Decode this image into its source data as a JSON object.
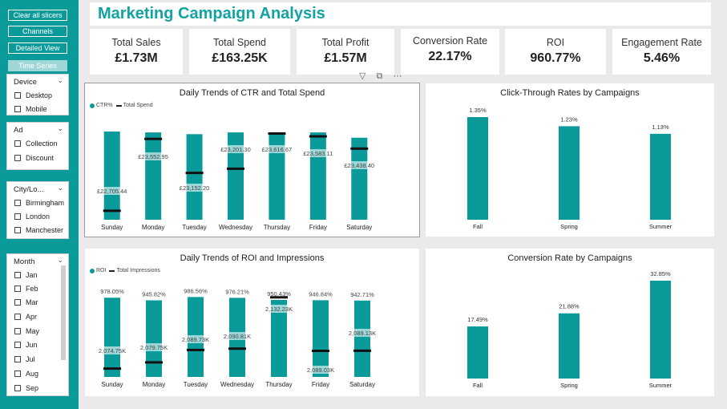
{
  "sidebar": {
    "buttons": [
      "Clear all slicers",
      "Channels",
      "Detailed View",
      "Time Series"
    ],
    "slicers": [
      {
        "title": "Device",
        "options": [
          "Desktop",
          "Mobile"
        ]
      },
      {
        "title": "Ad",
        "options": [
          "Collection",
          "Discount"
        ]
      },
      {
        "title": "City/Lo...",
        "options": [
          "Birmingham",
          "London",
          "Manchester"
        ]
      },
      {
        "title": "Month",
        "options": [
          "Jan",
          "Feb",
          "Mar",
          "Apr",
          "May",
          "Jun",
          "Jul",
          "Aug",
          "Sep"
        ]
      }
    ]
  },
  "header": {
    "title": "Marketing Campaign Analysis"
  },
  "kpis": [
    {
      "label": "Total Sales",
      "value": "£1.73M"
    },
    {
      "label": "Total Spend",
      "value": "£163.25K"
    },
    {
      "label": "Total Profit",
      "value": "£1.57M"
    },
    {
      "label": "Conversion Rate",
      "value": "22.17%"
    },
    {
      "label": "ROI",
      "value": "960.77%"
    },
    {
      "label": "Engagement Rate",
      "value": "5.46%"
    }
  ],
  "icons": {
    "filter": "filter-icon",
    "focus": "focus-mode-icon",
    "more": "more-options-icon"
  },
  "colors": {
    "teal": "#0a9a9a",
    "title": "#12a3a3"
  },
  "chart_data": [
    {
      "type": "bar",
      "title": "Daily Trends of CTR and Total Spend",
      "legend": [
        "CTR%",
        "Total Spend"
      ],
      "categories": [
        "Sunday",
        "Monday",
        "Tuesday",
        "Wednesday",
        "Thursday",
        "Friday",
        "Saturday"
      ],
      "series": [
        {
          "name": "CTR%",
          "kind": "bar",
          "values": [
            1.0,
            0.99,
            0.97,
            0.99,
            0.99,
            0.99,
            0.93
          ]
        },
        {
          "name": "Total Spend",
          "kind": "line-marker",
          "values": [
            22705.44,
            23552.95,
            23152.2,
            23201.3,
            23616.67,
            23583.11,
            23438.4
          ],
          "labels": [
            "£22,705.44",
            "£23,552.95",
            "£23,152.20",
            "£23,201.30",
            "£23,616.67",
            "£23,583.11",
            "£23,438.40"
          ],
          "ylim": [
            22600,
            23640
          ]
        }
      ]
    },
    {
      "type": "bar",
      "title": "Click-Through Rates by Campaigns",
      "categories": [
        "Fall",
        "Spring",
        "Summer"
      ],
      "values": [
        1.35,
        1.23,
        1.13
      ],
      "labels": [
        "1.35%",
        "1.23%",
        "1.13%"
      ],
      "ylim": [
        0,
        1.35
      ]
    },
    {
      "type": "bar",
      "title": "Daily Trends of ROI and Impressions",
      "legend": [
        "ROI",
        "Total Impressions"
      ],
      "categories": [
        "Sunday",
        "Monday",
        "Tuesday",
        "Wednesday",
        "Thursday",
        "Friday",
        "Saturday"
      ],
      "series": [
        {
          "name": "ROI",
          "kind": "bar",
          "values": [
            978.05,
            945.82,
            986.56,
            976.21,
            950.43,
            946.84,
            942.71
          ],
          "labels": [
            "978.05%",
            "945.82%",
            "986.56%",
            "976.21%",
            "950.43%",
            "946.84%",
            "942.71%"
          ],
          "ylim": [
            0,
            1010
          ]
        },
        {
          "name": "Total Impressions",
          "kind": "line-marker",
          "values": [
            2074.75,
            2079.75,
            2089.73,
            2090.81,
            2132.23,
            2089.03,
            2089.13
          ],
          "labels": [
            "2,074.75K",
            "2,079.75K",
            "2,089.73K",
            "2,090.81K",
            "2,132.23K",
            "2,089.03K",
            "2,089.13K"
          ],
          "ylim": [
            2068,
            2134
          ]
        }
      ]
    },
    {
      "type": "bar",
      "title": "Conversion Rate by Campaigns",
      "categories": [
        "Fall",
        "Spring",
        "Summer"
      ],
      "values": [
        17.49,
        21.88,
        32.85
      ],
      "labels": [
        "17.49%",
        "21.88%",
        "32.85%"
      ],
      "ylim": [
        0,
        32.85
      ]
    }
  ]
}
